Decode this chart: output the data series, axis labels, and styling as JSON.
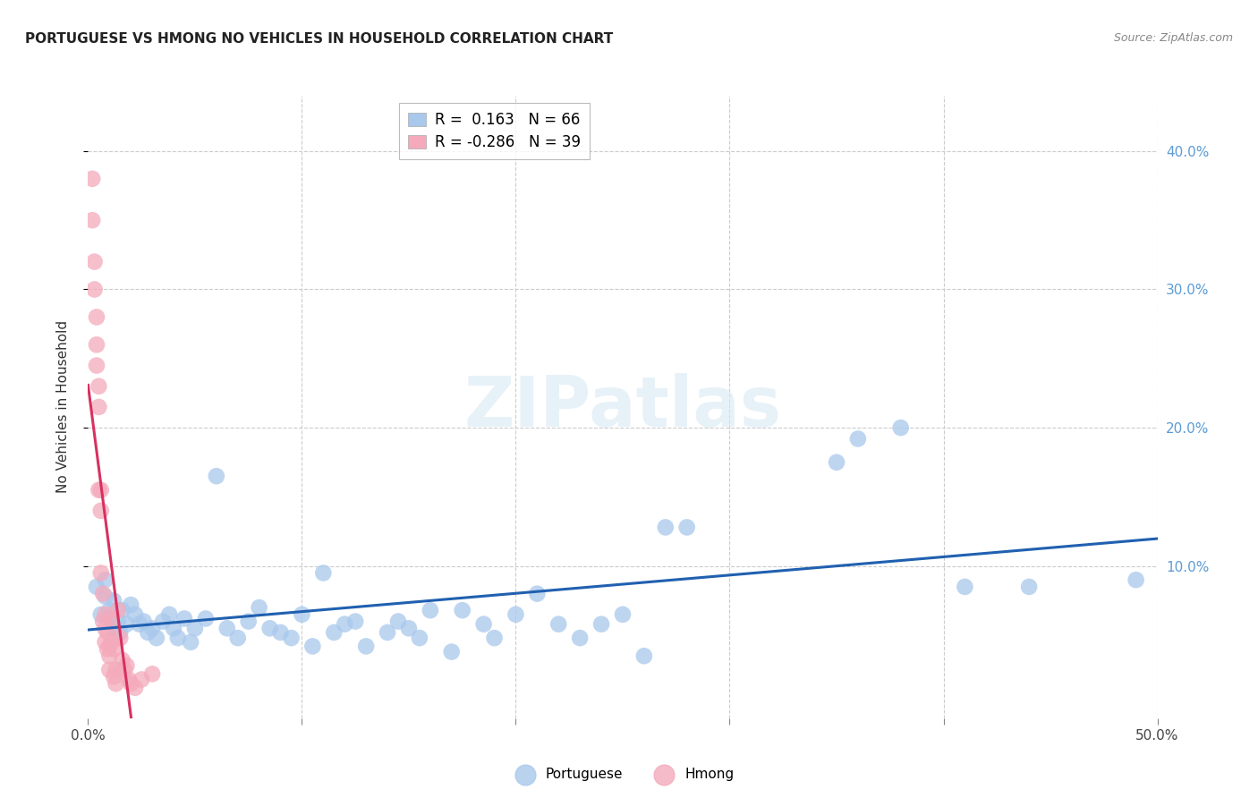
{
  "title": "PORTUGUESE VS HMONG NO VEHICLES IN HOUSEHOLD CORRELATION CHART",
  "source": "Source: ZipAtlas.com",
  "ylabel": "No Vehicles in Household",
  "watermark": "ZIPatlas",
  "xlim": [
    0.0,
    0.5
  ],
  "ylim": [
    -0.01,
    0.44
  ],
  "blue_R": "0.163",
  "blue_N": "66",
  "pink_R": "-0.286",
  "pink_N": "39",
  "blue_color": "#A8C8EC",
  "pink_color": "#F4AABB",
  "blue_line_color": "#2060B0",
  "pink_line_color": "#D83060",
  "portuguese_x": [
    0.004,
    0.006,
    0.008,
    0.008,
    0.01,
    0.01,
    0.012,
    0.012,
    0.014,
    0.015,
    0.016,
    0.018,
    0.02,
    0.022,
    0.024,
    0.026,
    0.028,
    0.03,
    0.032,
    0.035,
    0.038,
    0.04,
    0.042,
    0.045,
    0.048,
    0.05,
    0.055,
    0.06,
    0.065,
    0.07,
    0.075,
    0.08,
    0.085,
    0.09,
    0.095,
    0.1,
    0.105,
    0.11,
    0.115,
    0.12,
    0.125,
    0.13,
    0.14,
    0.145,
    0.15,
    0.155,
    0.16,
    0.17,
    0.175,
    0.185,
    0.19,
    0.2,
    0.21,
    0.22,
    0.23,
    0.24,
    0.25,
    0.26,
    0.27,
    0.28,
    0.35,
    0.36,
    0.38,
    0.41,
    0.44,
    0.49
  ],
  "portuguese_y": [
    0.085,
    0.065,
    0.09,
    0.078,
    0.068,
    0.062,
    0.075,
    0.055,
    0.06,
    0.052,
    0.068,
    0.058,
    0.072,
    0.065,
    0.058,
    0.06,
    0.052,
    0.055,
    0.048,
    0.06,
    0.065,
    0.055,
    0.048,
    0.062,
    0.045,
    0.055,
    0.062,
    0.165,
    0.055,
    0.048,
    0.06,
    0.07,
    0.055,
    0.052,
    0.048,
    0.065,
    0.042,
    0.095,
    0.052,
    0.058,
    0.06,
    0.042,
    0.052,
    0.06,
    0.055,
    0.048,
    0.068,
    0.038,
    0.068,
    0.058,
    0.048,
    0.065,
    0.08,
    0.058,
    0.048,
    0.058,
    0.065,
    0.035,
    0.128,
    0.128,
    0.175,
    0.192,
    0.2,
    0.085,
    0.085,
    0.09
  ],
  "hmong_x": [
    0.002,
    0.002,
    0.003,
    0.003,
    0.004,
    0.004,
    0.004,
    0.005,
    0.005,
    0.005,
    0.006,
    0.006,
    0.006,
    0.007,
    0.007,
    0.008,
    0.008,
    0.008,
    0.009,
    0.009,
    0.01,
    0.01,
    0.01,
    0.011,
    0.011,
    0.012,
    0.012,
    0.013,
    0.013,
    0.014,
    0.015,
    0.016,
    0.017,
    0.018,
    0.019,
    0.02,
    0.022,
    0.025,
    0.03
  ],
  "hmong_y": [
    0.38,
    0.35,
    0.32,
    0.3,
    0.28,
    0.26,
    0.245,
    0.23,
    0.215,
    0.155,
    0.155,
    0.14,
    0.095,
    0.08,
    0.06,
    0.065,
    0.055,
    0.045,
    0.052,
    0.04,
    0.042,
    0.035,
    0.025,
    0.062,
    0.045,
    0.04,
    0.02,
    0.025,
    0.015,
    0.068,
    0.048,
    0.032,
    0.025,
    0.028,
    0.018,
    0.015,
    0.012,
    0.018,
    0.022
  ]
}
